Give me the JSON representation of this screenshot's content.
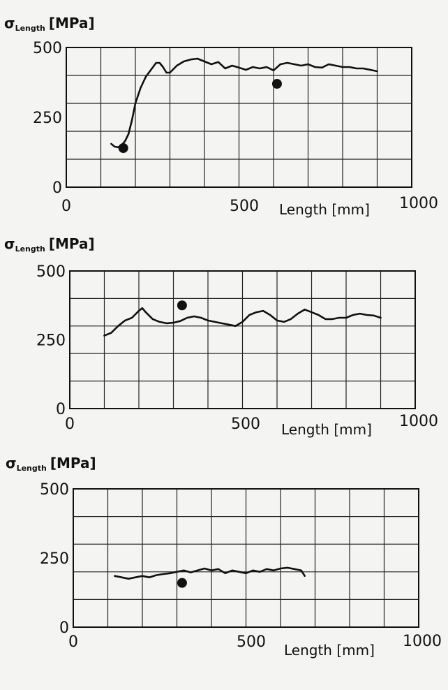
{
  "chart_data": [
    {
      "type": "line",
      "ylabel_symbol": "σ",
      "ylabel_subscript": "Length",
      "ylabel_unit": "[MPa]",
      "xlabel": "Length [mm]",
      "x_tick_labels": [
        "0",
        "500",
        "1000"
      ],
      "y_tick_labels": [
        "0",
        "250",
        "500"
      ],
      "xlim": [
        0,
        1000
      ],
      "ylim": [
        0,
        500
      ],
      "x_grid_step": 100,
      "y_grid_step": 100,
      "grid": true,
      "series": [
        {
          "x": [
            130,
            140,
            150,
            160,
            170,
            180,
            190,
            200,
            215,
            230,
            245,
            260,
            270,
            280,
            290,
            300,
            320,
            340,
            360,
            380,
            400,
            420,
            440,
            460,
            480,
            500,
            520,
            540,
            560,
            580,
            600,
            620,
            640,
            660,
            680,
            700,
            720,
            740,
            760,
            780,
            800,
            820,
            840,
            860,
            880,
            900
          ],
          "y": [
            155,
            145,
            143,
            150,
            165,
            190,
            240,
            300,
            355,
            395,
            420,
            445,
            445,
            430,
            410,
            410,
            435,
            450,
            457,
            460,
            450,
            440,
            448,
            425,
            435,
            428,
            420,
            430,
            425,
            430,
            418,
            440,
            445,
            440,
            435,
            440,
            430,
            428,
            440,
            435,
            430,
            430,
            425,
            425,
            420,
            415
          ]
        }
      ],
      "points": [
        {
          "x": 165,
          "y": 140
        },
        {
          "x": 610,
          "y": 370
        }
      ]
    },
    {
      "type": "line",
      "ylabel_symbol": "σ",
      "ylabel_subscript": "Length",
      "ylabel_unit": "[MPa]",
      "xlabel": "Length [mm]",
      "x_tick_labels": [
        "0",
        "500",
        "1000"
      ],
      "y_tick_labels": [
        "0",
        "250",
        "500"
      ],
      "xlim": [
        0,
        1000
      ],
      "ylim": [
        0,
        500
      ],
      "x_grid_step": 100,
      "y_grid_step": 100,
      "grid": true,
      "series": [
        {
          "x": [
            100,
            120,
            140,
            160,
            180,
            200,
            210,
            220,
            240,
            260,
            280,
            300,
            320,
            340,
            360,
            380,
            400,
            420,
            440,
            460,
            480,
            500,
            520,
            540,
            560,
            580,
            600,
            620,
            640,
            660,
            680,
            700,
            720,
            740,
            760,
            780,
            800,
            820,
            840,
            860,
            880,
            900
          ],
          "y": [
            265,
            275,
            300,
            320,
            330,
            355,
            365,
            350,
            325,
            315,
            310,
            312,
            318,
            330,
            335,
            330,
            320,
            315,
            310,
            305,
            300,
            315,
            340,
            350,
            355,
            340,
            320,
            315,
            325,
            345,
            360,
            350,
            340,
            325,
            325,
            330,
            330,
            340,
            345,
            340,
            338,
            330
          ]
        }
      ],
      "points": [
        {
          "x": 325,
          "y": 375
        }
      ]
    },
    {
      "type": "line",
      "ylabel_symbol": "σ",
      "ylabel_subscript": "Length",
      "ylabel_unit": "[MPa]",
      "xlabel": "Length [mm]",
      "x_tick_labels": [
        "0",
        "500",
        "1000"
      ],
      "y_tick_labels": [
        "0",
        "250",
        "500"
      ],
      "xlim": [
        0,
        1000
      ],
      "ylim": [
        0,
        500
      ],
      "x_grid_step": 100,
      "y_grid_step": 100,
      "grid": true,
      "series": [
        {
          "x": [
            120,
            140,
            160,
            180,
            200,
            220,
            240,
            260,
            280,
            300,
            320,
            340,
            360,
            380,
            400,
            420,
            440,
            460,
            480,
            500,
            520,
            540,
            560,
            580,
            600,
            620,
            640,
            660,
            670
          ],
          "y": [
            185,
            180,
            175,
            180,
            185,
            180,
            188,
            192,
            195,
            200,
            205,
            198,
            205,
            212,
            205,
            210,
            195,
            205,
            200,
            195,
            205,
            200,
            210,
            205,
            212,
            215,
            210,
            205,
            185
          ]
        }
      ],
      "points": [
        {
          "x": 315,
          "y": 160
        }
      ]
    }
  ]
}
